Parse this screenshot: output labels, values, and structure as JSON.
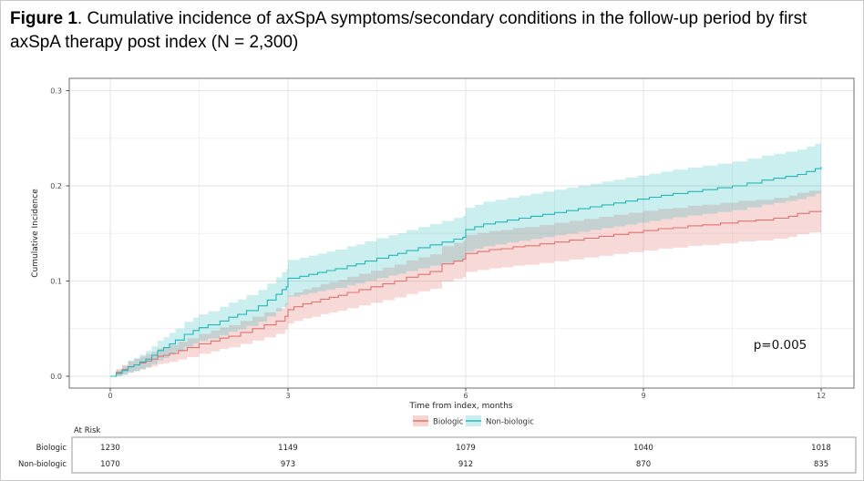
{
  "figure": {
    "title_bold": "Figure 1",
    "title_rest": ". Cumulative incidence of axSpA symptoms/secondary conditions in the follow-up period by first axSpA therapy post index (N = 2,300)"
  },
  "chart_data": {
    "type": "line",
    "subtype": "cumulative-incidence-step-with-ci",
    "xlabel": "Time from index, months",
    "ylabel": "Cumulative Incidence",
    "xlim": [
      -0.7,
      12.55
    ],
    "ylim": [
      0,
      0.313
    ],
    "xticks": [
      0,
      3,
      6,
      9,
      12
    ],
    "xtick_labels": [
      "0",
      "3",
      "6",
      "9",
      "12"
    ],
    "ytick_values": [
      0,
      0.1,
      0.2,
      0.3
    ],
    "ytick_labels": [
      "0.0",
      "0.1",
      "0.2",
      "0.3"
    ],
    "x_minor": [
      1.5,
      4.5,
      7.5,
      10.5
    ],
    "y_minor": [
      0.05,
      0.15,
      0.25
    ],
    "grid": "on",
    "legend_position": "bottom",
    "annotation": {
      "text": "p=0.005",
      "x": 11.3,
      "y": 0.03
    },
    "series": [
      {
        "name": "Biologic",
        "color": "#e0736f",
        "band_color": "rgba(224,115,111,0.27)",
        "legend_fill": "#f7d5d3",
        "ci_n": 1150,
        "points": [
          [
            0,
            0
          ],
          [
            0.1,
            0.004
          ],
          [
            0.2,
            0.007
          ],
          [
            0.3,
            0.01
          ],
          [
            0.4,
            0.012
          ],
          [
            0.5,
            0.014
          ],
          [
            0.6,
            0.016
          ],
          [
            0.7,
            0.018
          ],
          [
            0.8,
            0.021
          ],
          [
            0.9,
            0.022
          ],
          [
            1.0,
            0.024
          ],
          [
            1.15,
            0.027
          ],
          [
            1.3,
            0.03
          ],
          [
            1.5,
            0.034
          ],
          [
            1.7,
            0.037
          ],
          [
            1.85,
            0.04
          ],
          [
            2.0,
            0.042
          ],
          [
            2.2,
            0.046
          ],
          [
            2.4,
            0.05
          ],
          [
            2.6,
            0.054
          ],
          [
            2.8,
            0.058
          ],
          [
            2.95,
            0.063
          ],
          [
            3.0,
            0.07
          ],
          [
            3.1,
            0.073
          ],
          [
            3.25,
            0.076
          ],
          [
            3.4,
            0.078
          ],
          [
            3.55,
            0.081
          ],
          [
            3.7,
            0.083
          ],
          [
            3.85,
            0.085
          ],
          [
            4.0,
            0.088
          ],
          [
            4.2,
            0.091
          ],
          [
            4.4,
            0.094
          ],
          [
            4.6,
            0.097
          ],
          [
            4.8,
            0.1
          ],
          [
            5.0,
            0.104
          ],
          [
            5.2,
            0.107
          ],
          [
            5.4,
            0.11
          ],
          [
            5.6,
            0.118
          ],
          [
            5.8,
            0.121
          ],
          [
            5.95,
            0.123
          ],
          [
            6.0,
            0.129
          ],
          [
            6.2,
            0.131
          ],
          [
            6.4,
            0.133
          ],
          [
            6.6,
            0.134
          ],
          [
            6.8,
            0.136
          ],
          [
            7.0,
            0.137
          ],
          [
            7.25,
            0.139
          ],
          [
            7.5,
            0.141
          ],
          [
            7.75,
            0.143
          ],
          [
            8.0,
            0.145
          ],
          [
            8.25,
            0.147
          ],
          [
            8.5,
            0.149
          ],
          [
            8.75,
            0.151
          ],
          [
            9.0,
            0.153
          ],
          [
            9.25,
            0.155
          ],
          [
            9.5,
            0.156
          ],
          [
            9.75,
            0.158
          ],
          [
            10.0,
            0.159
          ],
          [
            10.3,
            0.161
          ],
          [
            10.6,
            0.163
          ],
          [
            10.9,
            0.164
          ],
          [
            11.2,
            0.166
          ],
          [
            11.45,
            0.168
          ],
          [
            11.6,
            0.171
          ],
          [
            11.8,
            0.173
          ],
          [
            12,
            0.174
          ]
        ]
      },
      {
        "name": "Non-biologic",
        "color": "#24b7b9",
        "band_color": "rgba(36,183,185,0.24)",
        "legend_fill": "#cdeeee",
        "ci_n": 950,
        "points": [
          [
            0,
            0
          ],
          [
            0.1,
            0.003
          ],
          [
            0.2,
            0.006
          ],
          [
            0.3,
            0.01
          ],
          [
            0.4,
            0.012
          ],
          [
            0.5,
            0.015
          ],
          [
            0.6,
            0.018
          ],
          [
            0.7,
            0.022
          ],
          [
            0.8,
            0.027
          ],
          [
            0.9,
            0.03
          ],
          [
            1.0,
            0.034
          ],
          [
            1.1,
            0.038
          ],
          [
            1.25,
            0.044
          ],
          [
            1.4,
            0.048
          ],
          [
            1.5,
            0.051
          ],
          [
            1.65,
            0.054
          ],
          [
            1.85,
            0.058
          ],
          [
            2.0,
            0.062
          ],
          [
            2.15,
            0.065
          ],
          [
            2.3,
            0.069
          ],
          [
            2.5,
            0.074
          ],
          [
            2.65,
            0.08
          ],
          [
            2.8,
            0.086
          ],
          [
            2.9,
            0.091
          ],
          [
            2.97,
            0.094
          ],
          [
            3.0,
            0.103
          ],
          [
            3.2,
            0.105
          ],
          [
            3.35,
            0.107
          ],
          [
            3.5,
            0.109
          ],
          [
            3.65,
            0.111
          ],
          [
            3.8,
            0.113
          ],
          [
            4.0,
            0.116
          ],
          [
            4.15,
            0.118
          ],
          [
            4.3,
            0.121
          ],
          [
            4.5,
            0.124
          ],
          [
            4.7,
            0.127
          ],
          [
            4.85,
            0.129
          ],
          [
            5.0,
            0.132
          ],
          [
            5.2,
            0.135
          ],
          [
            5.4,
            0.138
          ],
          [
            5.6,
            0.141
          ],
          [
            5.8,
            0.144
          ],
          [
            5.95,
            0.146
          ],
          [
            6.0,
            0.154
          ],
          [
            6.15,
            0.157
          ],
          [
            6.3,
            0.16
          ],
          [
            6.5,
            0.162
          ],
          [
            6.7,
            0.164
          ],
          [
            6.9,
            0.166
          ],
          [
            7.1,
            0.168
          ],
          [
            7.3,
            0.17
          ],
          [
            7.5,
            0.172
          ],
          [
            7.7,
            0.174
          ],
          [
            7.9,
            0.176
          ],
          [
            8.1,
            0.178
          ],
          [
            8.3,
            0.18
          ],
          [
            8.5,
            0.182
          ],
          [
            8.7,
            0.184
          ],
          [
            8.9,
            0.186
          ],
          [
            9.1,
            0.188
          ],
          [
            9.3,
            0.19
          ],
          [
            9.5,
            0.192
          ],
          [
            9.75,
            0.194
          ],
          [
            10.0,
            0.196
          ],
          [
            10.25,
            0.198
          ],
          [
            10.5,
            0.2
          ],
          [
            10.75,
            0.203
          ],
          [
            11.0,
            0.206
          ],
          [
            11.2,
            0.208
          ],
          [
            11.4,
            0.21
          ],
          [
            11.6,
            0.212
          ],
          [
            11.75,
            0.215
          ],
          [
            11.9,
            0.218
          ],
          [
            12,
            0.22
          ]
        ]
      }
    ],
    "at_risk": {
      "header": "At Risk",
      "times": [
        0,
        3,
        6,
        9,
        12
      ],
      "rows": [
        {
          "label": "Biologic",
          "values": [
            "1230",
            "1149",
            "1079",
            "1040",
            "1018"
          ]
        },
        {
          "label": "Non-biologic",
          "values": [
            "1070",
            "973",
            "912",
            "870",
            "835"
          ]
        }
      ]
    }
  }
}
